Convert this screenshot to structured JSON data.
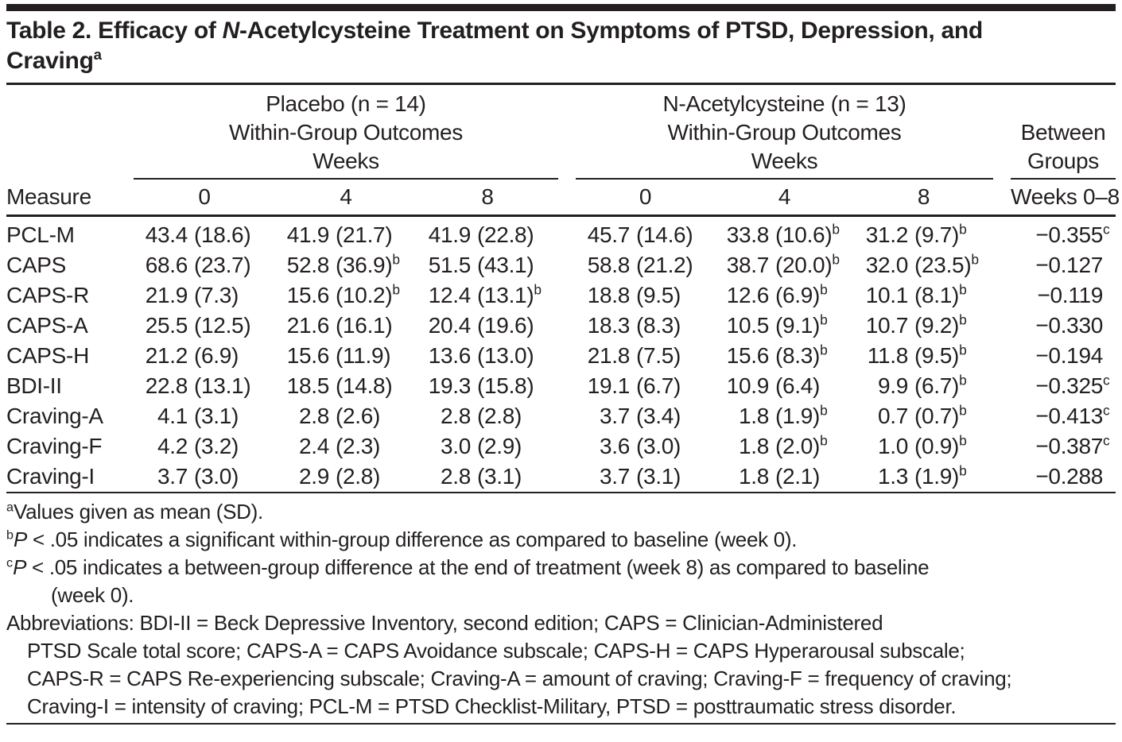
{
  "page": {
    "background": "#ffffff",
    "text_color": "#231f20",
    "rule_color": "#231f20"
  },
  "title": {
    "lines": [
      [
        {
          "t": "Table 2. Efficacy of "
        },
        {
          "t": "N",
          "i": true
        },
        {
          "t": "-Acetylcysteine Treatment on Symptoms of PTSD, Depression, and"
        }
      ],
      [
        {
          "t": "Craving"
        },
        {
          "t": "a",
          "sup": true
        }
      ]
    ]
  },
  "header": {
    "measure_label": "Measure",
    "groups": [
      {
        "id": "placebo",
        "line1": [
          {
            "t": "Placebo (n = 14)"
          }
        ],
        "line2": "Within-Group Outcomes",
        "line3": "Weeks",
        "week_cols": [
          "0",
          "4",
          "8"
        ]
      },
      {
        "id": "n-acetylcysteine",
        "line1": [
          {
            "t": "N",
            "i": true
          },
          {
            "t": "-Acetylcysteine (n = 13)"
          }
        ],
        "line2": "Within-Group Outcomes",
        "line3": "Weeks",
        "week_cols": [
          "0",
          "4",
          "8"
        ]
      }
    ],
    "between": {
      "line1": "Between",
      "line2": "Groups",
      "col_label": "Weeks 0–8"
    }
  },
  "rows": [
    {
      "measure": "PCL-M",
      "placebo": [
        {
          "m": "43.4",
          "s": "(18.6)"
        },
        {
          "m": "41.9",
          "s": "(21.7)"
        },
        {
          "m": "41.9",
          "s": "(22.8)"
        }
      ],
      "nac": [
        {
          "m": "45.7",
          "s": "(14.6)"
        },
        {
          "m": "33.8",
          "s": "(10.6)",
          "sup": "b"
        },
        {
          "m": "31.2",
          "s": "(9.7)",
          "sup": "b"
        }
      ],
      "between": {
        "v": "−0.355",
        "sup": "c"
      }
    },
    {
      "measure": "CAPS",
      "placebo": [
        {
          "m": "68.6",
          "s": "(23.7)"
        },
        {
          "m": "52.8",
          "s": "(36.9)",
          "sup": "b"
        },
        {
          "m": "51.5",
          "s": "(43.1)"
        }
      ],
      "nac": [
        {
          "m": "58.8",
          "s": "(21.2)"
        },
        {
          "m": "38.7",
          "s": "(20.0)",
          "sup": "b"
        },
        {
          "m": "32.0",
          "s": "(23.5)",
          "sup": "b"
        }
      ],
      "between": {
        "v": "−0.127"
      }
    },
    {
      "measure": "CAPS-R",
      "placebo": [
        {
          "m": "21.9",
          "s": "(7.3)"
        },
        {
          "m": "15.6",
          "s": "(10.2)",
          "sup": "b"
        },
        {
          "m": "12.4",
          "s": "(13.1)",
          "sup": "b"
        }
      ],
      "nac": [
        {
          "m": "18.8",
          "s": "(9.5)"
        },
        {
          "m": "12.6",
          "s": "(6.9)",
          "sup": "b"
        },
        {
          "m": "10.1",
          "s": "(8.1)",
          "sup": "b"
        }
      ],
      "between": {
        "v": "−0.119"
      }
    },
    {
      "measure": "CAPS-A",
      "placebo": [
        {
          "m": "25.5",
          "s": "(12.5)"
        },
        {
          "m": "21.6",
          "s": "(16.1)"
        },
        {
          "m": "20.4",
          "s": "(19.6)"
        }
      ],
      "nac": [
        {
          "m": "18.3",
          "s": "(8.3)"
        },
        {
          "m": "10.5",
          "s": "(9.1)",
          "sup": "b"
        },
        {
          "m": "10.7",
          "s": "(9.2)",
          "sup": "b"
        }
      ],
      "between": {
        "v": "−0.330"
      }
    },
    {
      "measure": "CAPS-H",
      "placebo": [
        {
          "m": "21.2",
          "s": "(6.9)"
        },
        {
          "m": "15.6",
          "s": "(11.9)"
        },
        {
          "m": "13.6",
          "s": "(13.0)"
        }
      ],
      "nac": [
        {
          "m": "21.8",
          "s": "(7.5)"
        },
        {
          "m": "15.6",
          "s": "(8.3)",
          "sup": "b"
        },
        {
          "m": "11.8",
          "s": "(9.5)",
          "sup": "b"
        }
      ],
      "between": {
        "v": "−0.194"
      }
    },
    {
      "measure": "BDI-II",
      "placebo": [
        {
          "m": "22.8",
          "s": "(13.1)"
        },
        {
          "m": "18.5",
          "s": "(14.8)"
        },
        {
          "m": "19.3",
          "s": "(15.8)"
        }
      ],
      "nac": [
        {
          "m": "19.1",
          "s": "(6.7)"
        },
        {
          "m": "10.9",
          "s": "(6.4)"
        },
        {
          "m": "9.9",
          "s": "(6.7)",
          "sup": "b"
        }
      ],
      "between": {
        "v": "−0.325",
        "sup": "c"
      }
    },
    {
      "measure": "Craving-A",
      "placebo": [
        {
          "m": "4.1",
          "s": "(3.1)"
        },
        {
          "m": "2.8",
          "s": "(2.6)"
        },
        {
          "m": "2.8",
          "s": "(2.8)"
        }
      ],
      "nac": [
        {
          "m": "3.7",
          "s": "(3.4)"
        },
        {
          "m": "1.8",
          "s": "(1.9)",
          "sup": "b"
        },
        {
          "m": "0.7",
          "s": "(0.7)",
          "sup": "b"
        }
      ],
      "between": {
        "v": "−0.413",
        "sup": "c"
      }
    },
    {
      "measure": "Craving-F",
      "placebo": [
        {
          "m": "4.2",
          "s": "(3.2)"
        },
        {
          "m": "2.4",
          "s": "(2.3)"
        },
        {
          "m": "3.0",
          "s": "(2.9)"
        }
      ],
      "nac": [
        {
          "m": "3.6",
          "s": "(3.0)"
        },
        {
          "m": "1.8",
          "s": "(2.0)",
          "sup": "b"
        },
        {
          "m": "1.0",
          "s": "(0.9)",
          "sup": "b"
        }
      ],
      "between": {
        "v": "−0.387",
        "sup": "c"
      }
    },
    {
      "measure": "Craving-I",
      "placebo": [
        {
          "m": "3.7",
          "s": "(3.0)"
        },
        {
          "m": "2.9",
          "s": "(2.8)"
        },
        {
          "m": "2.8",
          "s": "(3.1)"
        }
      ],
      "nac": [
        {
          "m": "3.7",
          "s": "(3.1)"
        },
        {
          "m": "1.8",
          "s": "(2.1)"
        },
        {
          "m": "1.3",
          "s": "(1.9)",
          "sup": "b"
        }
      ],
      "between": {
        "v": "−0.288"
      }
    }
  ],
  "footnotes": [
    {
      "marker": "a",
      "segments": [
        {
          "t": "Values given as mean (SD)."
        }
      ]
    },
    {
      "marker": "b",
      "segments": [
        {
          "t": "P",
          "i": true
        },
        {
          "t": " < .05 indicates a significant within-group difference as compared to baseline (week 0)."
        }
      ]
    },
    {
      "marker": "c",
      "segments": [
        {
          "t": "P",
          "i": true
        },
        {
          "t": " < .05 indicates a between-group difference at the end of treatment (week 8) as compared to baseline"
        }
      ]
    },
    {
      "marker": "",
      "indent": 2,
      "segments": [
        {
          "t": "(week 0)."
        }
      ]
    },
    {
      "marker": "",
      "segments": [
        {
          "t": "Abbreviations: BDI-II = Beck Depressive Inventory, second edition; CAPS = Clinician-Administered"
        }
      ]
    },
    {
      "marker": "",
      "indent": 1,
      "segments": [
        {
          "t": "PTSD Scale total score; CAPS-A = CAPS Avoidance subscale; CAPS-H = CAPS Hyperarousal subscale;"
        }
      ]
    },
    {
      "marker": "",
      "indent": 1,
      "segments": [
        {
          "t": "CAPS-R = CAPS Re-experiencing subscale; Craving-A = amount of craving; Craving-F = frequency of craving;"
        }
      ]
    },
    {
      "marker": "",
      "indent": 1,
      "segments": [
        {
          "t": "Craving-I = intensity of craving; PCL-M = PTSD Checklist-Military, PTSD = posttraumatic stress disorder."
        }
      ]
    }
  ]
}
